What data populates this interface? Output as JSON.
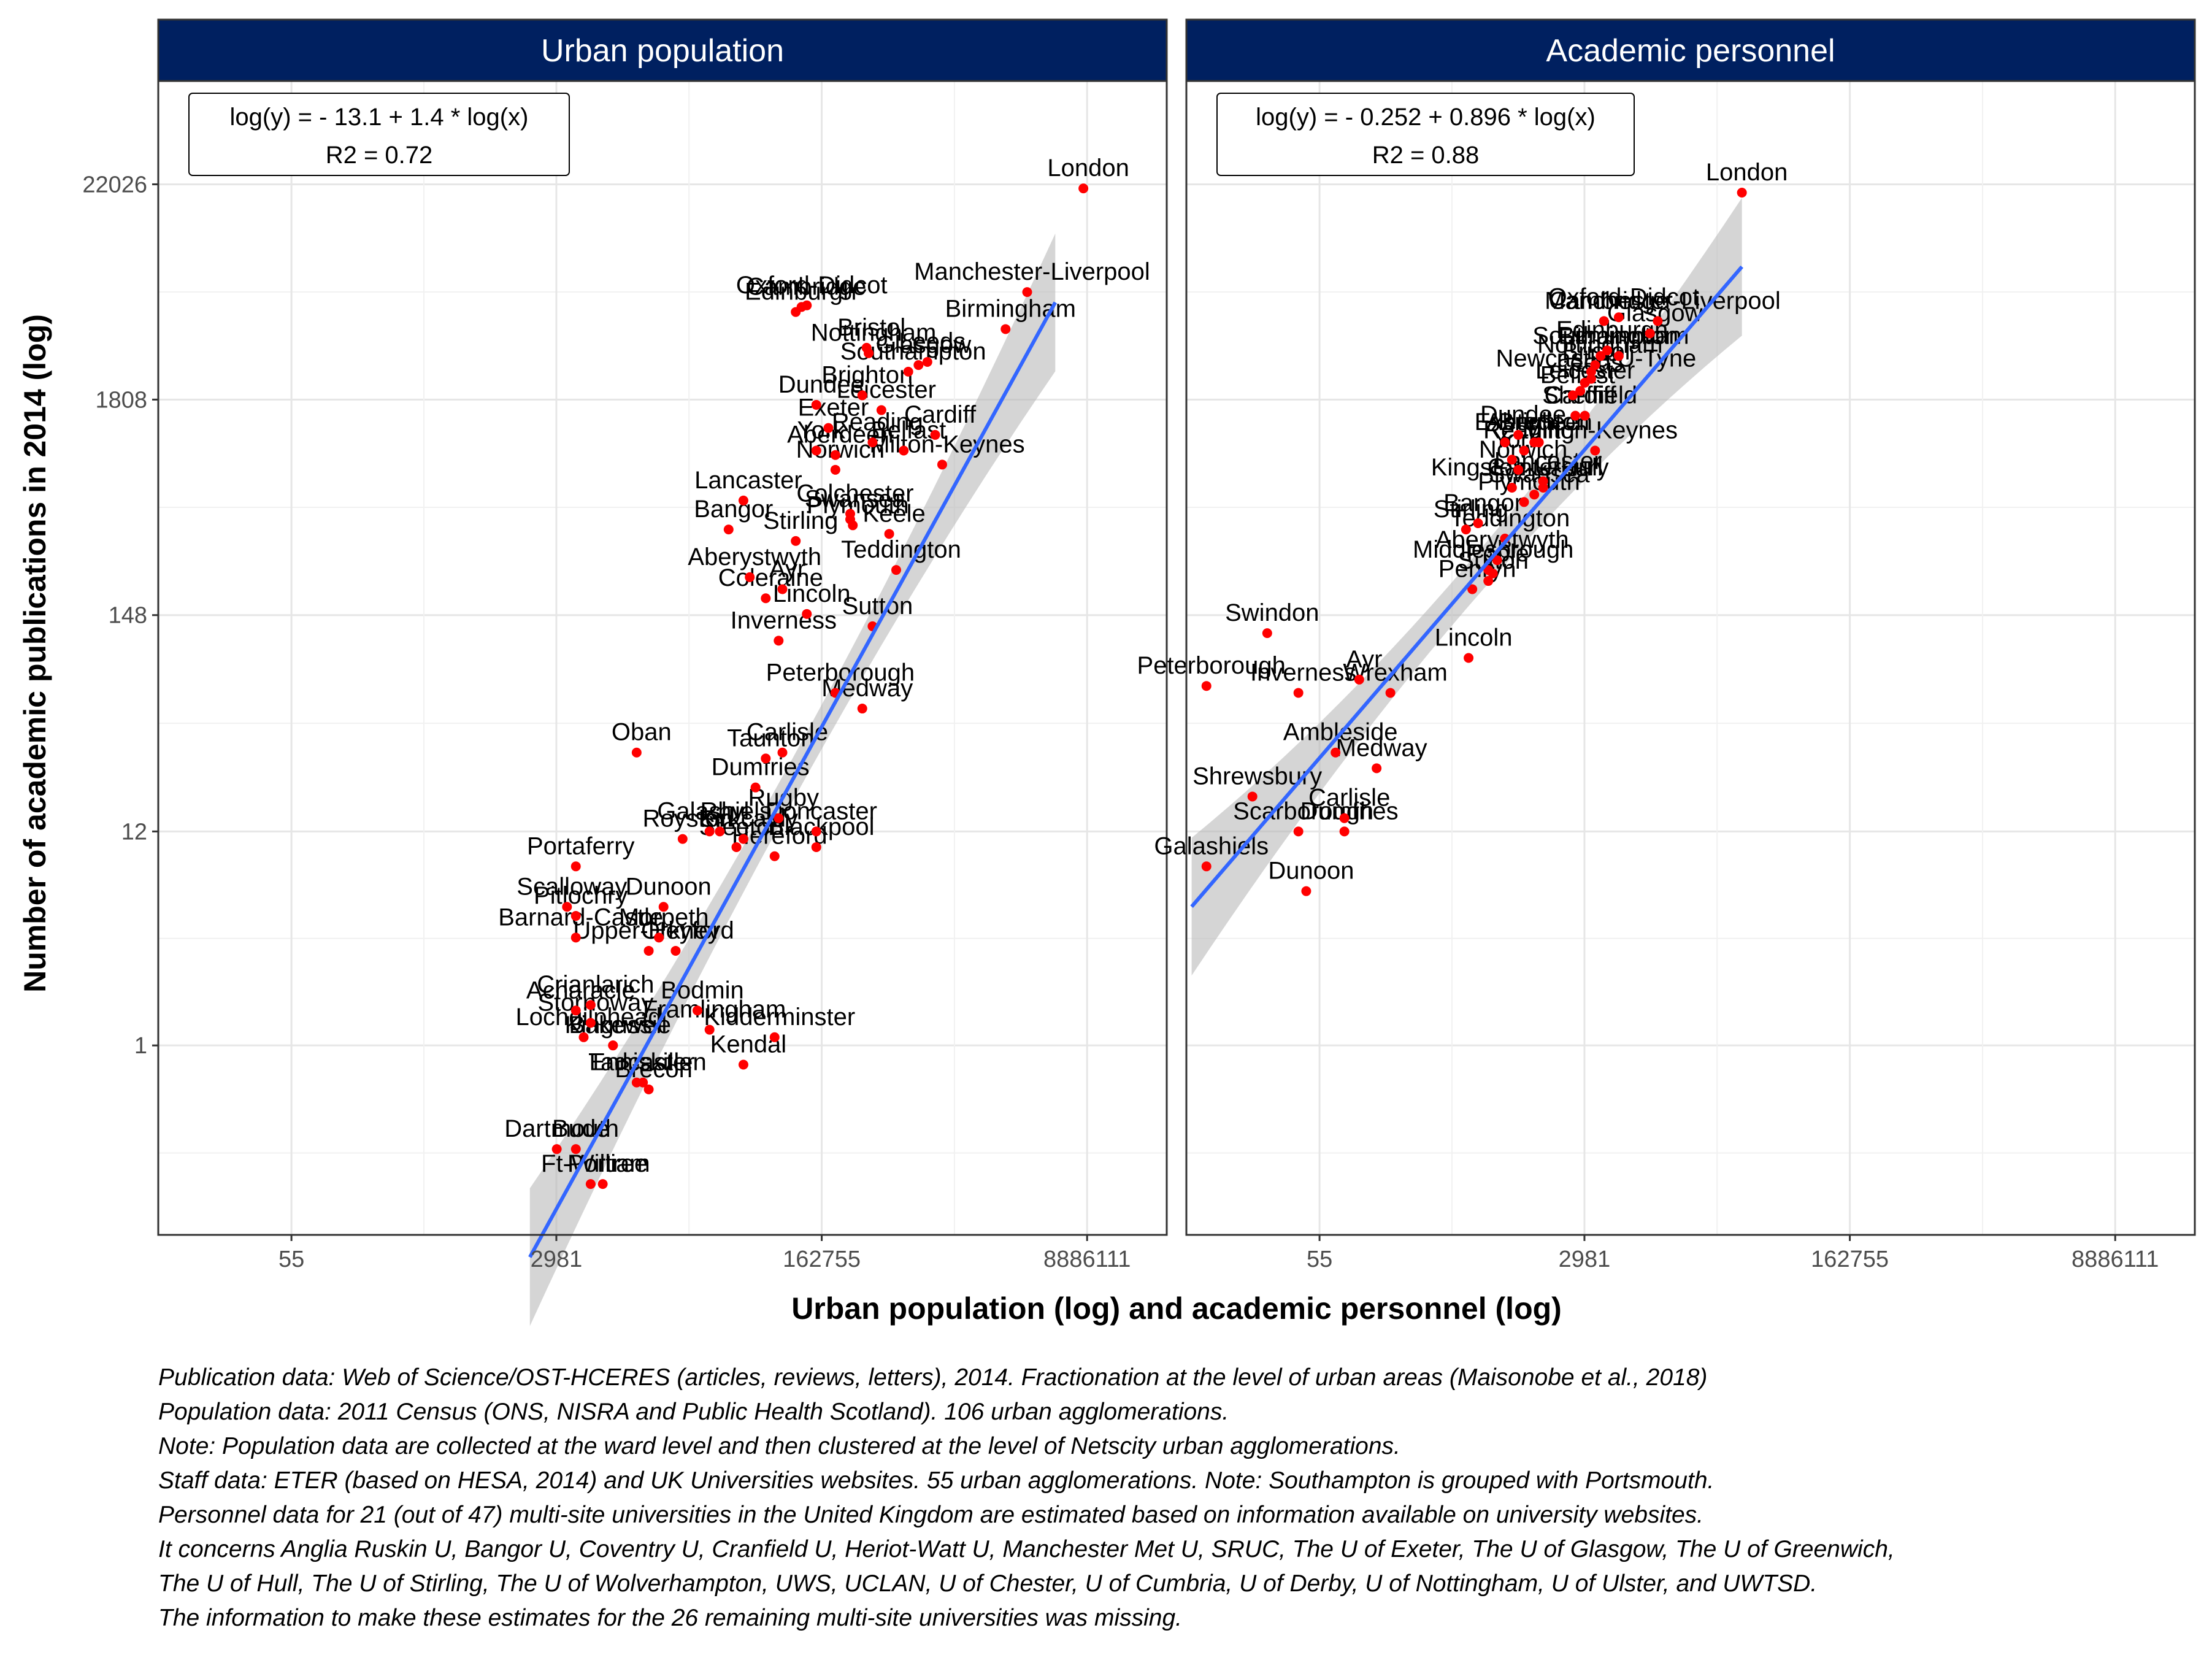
{
  "chart_data": {
    "type": "scatter",
    "ylabel": "Number of academic publications in 2014 (log)",
    "xlabel": "Urban population (log) and academic personnel (log)",
    "y_scale": "log",
    "x_scale": "log",
    "y_ticks": [
      "1",
      "12",
      "148",
      "1808",
      "22026"
    ],
    "x_ticks": [
      "55",
      "2981",
      "162755",
      "8886111"
    ],
    "grid": true,
    "point_color": "#ff0000",
    "fit_color": "#3366ff",
    "header_color": "#002060",
    "panels": [
      {
        "title": "Urban population",
        "equation": "log(y) = - 13.1 + 1.4 * log(x)",
        "r2": "R2 = 0.72",
        "fit": {
          "intercept": -13.1,
          "slope": 1.4,
          "x_range": [
            2000,
            5500000
          ]
        },
        "points": [
          {
            "label": "London",
            "x": 8400000,
            "y": 21000
          },
          {
            "label": "Manchester-Liverpool",
            "x": 3600000,
            "y": 6300
          },
          {
            "label": "Birmingham",
            "x": 2600000,
            "y": 4100
          },
          {
            "label": "Oxford-Didcot",
            "x": 130000,
            "y": 5400
          },
          {
            "label": "Edinburgh",
            "x": 110000,
            "y": 5000
          },
          {
            "label": "Glasgow",
            "x": 700000,
            "y": 2700
          },
          {
            "label": "Bristol",
            "x": 320000,
            "y": 3300
          },
          {
            "label": "Cambridge",
            "x": 120000,
            "y": 5300
          },
          {
            "label": "Nottingham",
            "x": 330000,
            "y": 3100
          },
          {
            "label": "Leeds",
            "x": 800000,
            "y": 2800
          },
          {
            "label": "Southampton",
            "x": 600000,
            "y": 2500
          },
          {
            "label": "Cardiff",
            "x": 900000,
            "y": 1200
          },
          {
            "label": "Dundee",
            "x": 150000,
            "y": 1700
          },
          {
            "label": "Leicester",
            "x": 400000,
            "y": 1600
          },
          {
            "label": "Brighton",
            "x": 300000,
            "y": 1900
          },
          {
            "label": "Reading",
            "x": 350000,
            "y": 1100
          },
          {
            "label": "Belfast",
            "x": 560000,
            "y": 1000
          },
          {
            "label": "Exeter",
            "x": 180000,
            "y": 1300
          },
          {
            "label": "Aberdeen",
            "x": 200000,
            "y": 950
          },
          {
            "label": "York",
            "x": 150000,
            "y": 1000
          },
          {
            "label": "Norwich",
            "x": 200000,
            "y": 800
          },
          {
            "label": "Milton-Keynes",
            "x": 1000000,
            "y": 850
          },
          {
            "label": "Lancaster",
            "x": 50000,
            "y": 560
          },
          {
            "label": "Colchester",
            "x": 250000,
            "y": 480
          },
          {
            "label": "Swansea",
            "x": 250000,
            "y": 450
          },
          {
            "label": "Plymouth",
            "x": 260000,
            "y": 420
          },
          {
            "label": "Stirling",
            "x": 110000,
            "y": 350
          },
          {
            "label": "Keele",
            "x": 450000,
            "y": 380
          },
          {
            "label": "Bangor",
            "x": 40000,
            "y": 400
          },
          {
            "label": "Aberystwyth",
            "x": 55000,
            "y": 230
          },
          {
            "label": "Teddington",
            "x": 500000,
            "y": 250
          },
          {
            "label": "Coleraine",
            "x": 70000,
            "y": 180
          },
          {
            "label": "Lincoln",
            "x": 130000,
            "y": 150
          },
          {
            "label": "Sutton",
            "x": 350000,
            "y": 130
          },
          {
            "label": "Inverness",
            "x": 85000,
            "y": 110
          },
          {
            "label": "Ayr",
            "x": 90000,
            "y": 200
          },
          {
            "label": "Peterborough",
            "x": 200000,
            "y": 60
          },
          {
            "label": "Medway",
            "x": 300000,
            "y": 50
          },
          {
            "label": "Oban",
            "x": 10000,
            "y": 30
          },
          {
            "label": "Carlisle",
            "x": 90000,
            "y": 30
          },
          {
            "label": "Taunton",
            "x": 70000,
            "y": 28
          },
          {
            "label": "Dumfries",
            "x": 60000,
            "y": 20
          },
          {
            "label": "Royston",
            "x": 20000,
            "y": 11
          },
          {
            "label": "Galashiels",
            "x": 30000,
            "y": 12
          },
          {
            "label": "Rugby",
            "x": 85000,
            "y": 14
          },
          {
            "label": "Rhyl",
            "x": 35000,
            "y": 12
          },
          {
            "label": "Kirkcaldy",
            "x": 50000,
            "y": 11
          },
          {
            "label": "Doncaster",
            "x": 150000,
            "y": 12
          },
          {
            "label": "Portaferry",
            "x": 4000,
            "y": 8
          },
          {
            "label": "Blackpool",
            "x": 150000,
            "y": 10
          },
          {
            "label": "Steeton",
            "x": 45000,
            "y": 10
          },
          {
            "label": "Hereford",
            "x": 80000,
            "y": 9
          },
          {
            "label": "Scalloway",
            "x": 3500,
            "y": 5
          },
          {
            "label": "Pitlochry",
            "x": 4000,
            "y": 4.5
          },
          {
            "label": "Dunoon",
            "x": 15000,
            "y": 5
          },
          {
            "label": "Barnard-Castle",
            "x": 4000,
            "y": 3.5
          },
          {
            "label": "Upper-Heyford",
            "x": 12000,
            "y": 3
          },
          {
            "label": "Orkney",
            "x": 18000,
            "y": 3
          },
          {
            "label": "Morpeth",
            "x": 14000,
            "y": 3.5
          },
          {
            "label": "Crianlarich",
            "x": 5000,
            "y": 1.6
          },
          {
            "label": "Acharacle",
            "x": 4000,
            "y": 1.5
          },
          {
            "label": "Bodmin",
            "x": 25000,
            "y": 1.5
          },
          {
            "label": "Framlingham",
            "x": 30000,
            "y": 1.2
          },
          {
            "label": "Stornoway",
            "x": 5000,
            "y": 1.3
          },
          {
            "label": "Kidderminster",
            "x": 80000,
            "y": 1.1
          },
          {
            "label": "Lochgilphead",
            "x": 4500,
            "y": 1.1
          },
          {
            "label": "Bakewell",
            "x": 7000,
            "y": 1
          },
          {
            "label": "Kingussie",
            "x": 7000,
            "y": 1
          },
          {
            "label": "Enniskillen",
            "x": 11000,
            "y": 0.65
          },
          {
            "label": "Kendal",
            "x": 50000,
            "y": 0.8
          },
          {
            "label": "Tadcaster",
            "x": 10000,
            "y": 0.65
          },
          {
            "label": "Brecon",
            "x": 12000,
            "y": 0.6
          },
          {
            "label": "Bude",
            "x": 4000,
            "y": 0.3
          },
          {
            "label": "Dartmouth",
            "x": 3000,
            "y": 0.3
          },
          {
            "label": "Ft-William",
            "x": 5000,
            "y": 0.2
          },
          {
            "label": "Portree",
            "x": 6000,
            "y": 0.2
          }
        ]
      },
      {
        "title": "Academic personnel",
        "equation": "log(y) = - 0.252 + 0.896 * log(x)",
        "r2": "R2 = 0.88",
        "fit": {
          "intercept": -0.252,
          "slope": 0.896,
          "x_range": [
            8,
            32000
          ]
        },
        "points": [
          {
            "label": "London",
            "x": 32000,
            "y": 20000
          },
          {
            "label": "Manchester-Liverpool",
            "x": 9000,
            "y": 4500
          },
          {
            "label": "Cambridge",
            "x": 4000,
            "y": 4500
          },
          {
            "label": "Oxford-Didcot",
            "x": 5000,
            "y": 4700
          },
          {
            "label": "Glasgow",
            "x": 8000,
            "y": 3900
          },
          {
            "label": "Southampton",
            "x": 3800,
            "y": 3000
          },
          {
            "label": "Edinburgh",
            "x": 4200,
            "y": 3200
          },
          {
            "label": "Birmingham",
            "x": 5000,
            "y": 3000
          },
          {
            "label": "Nottingham",
            "x": 3500,
            "y": 2700
          },
          {
            "label": "Bristol",
            "x": 3300,
            "y": 2500
          },
          {
            "label": "Newcastle-U-Tyne",
            "x": 3300,
            "y": 2300
          },
          {
            "label": "Leicester",
            "x": 2800,
            "y": 2000
          },
          {
            "label": "Leeds",
            "x": 3000,
            "y": 2200
          },
          {
            "label": "Belfast",
            "x": 2500,
            "y": 1900
          },
          {
            "label": "Sheffield",
            "x": 3000,
            "y": 1500
          },
          {
            "label": "Cardiff",
            "x": 2600,
            "y": 1500
          },
          {
            "label": "Exeter",
            "x": 900,
            "y": 1100
          },
          {
            "label": "Reading",
            "x": 1200,
            "y": 1000
          },
          {
            "label": "Dundee",
            "x": 1100,
            "y": 1200
          },
          {
            "label": "Milton-Keynes",
            "x": 3500,
            "y": 1000
          },
          {
            "label": "York",
            "x": 1000,
            "y": 900
          },
          {
            "label": "Norwich",
            "x": 1100,
            "y": 800
          },
          {
            "label": "Aberdeen",
            "x": 1400,
            "y": 1100
          },
          {
            "label": "Brighton",
            "x": 1500,
            "y": 1100
          },
          {
            "label": "Kingston-U-Hull",
            "x": 1000,
            "y": 650
          },
          {
            "label": "Plymouth",
            "x": 1200,
            "y": 550
          },
          {
            "label": "Swansea",
            "x": 1400,
            "y": 600
          },
          {
            "label": "Canterbury",
            "x": 1600,
            "y": 650
          },
          {
            "label": "Lancaster",
            "x": 1600,
            "y": 700
          },
          {
            "label": "Stirling",
            "x": 500,
            "y": 400
          },
          {
            "label": "Bangor",
            "x": 600,
            "y": 430
          },
          {
            "label": "Teddington",
            "x": 900,
            "y": 360
          },
          {
            "label": "Middlesbrough",
            "x": 700,
            "y": 250
          },
          {
            "label": "Aberystwyth",
            "x": 800,
            "y": 280
          },
          {
            "label": "Swindon",
            "x": 25,
            "y": 120
          },
          {
            "label": "Penryn",
            "x": 550,
            "y": 200
          },
          {
            "label": "Sutton",
            "x": 700,
            "y": 220
          },
          {
            "label": "Poole",
            "x": 750,
            "y": 240
          },
          {
            "label": "Peterborough",
            "x": 10,
            "y": 65
          },
          {
            "label": "Lincoln",
            "x": 520,
            "y": 90
          },
          {
            "label": "Inverness",
            "x": 40,
            "y": 60
          },
          {
            "label": "Ayr",
            "x": 100,
            "y": 70
          },
          {
            "label": "Wrexham",
            "x": 160,
            "y": 60
          },
          {
            "label": "Ambleside",
            "x": 70,
            "y": 30
          },
          {
            "label": "Medway",
            "x": 130,
            "y": 25
          },
          {
            "label": "Shrewsbury",
            "x": 20,
            "y": 18
          },
          {
            "label": "Carlisle",
            "x": 80,
            "y": 14
          },
          {
            "label": "Scarborough",
            "x": 40,
            "y": 12
          },
          {
            "label": "Dumfries",
            "x": 80,
            "y": 12
          },
          {
            "label": "Galashiels",
            "x": 10,
            "y": 8
          },
          {
            "label": "Dunoon",
            "x": 45,
            "y": 6
          }
        ]
      }
    ]
  },
  "caption": [
    "Publication data: Web of Science/OST-HCERES (articles, reviews, letters), 2014. Fractionation at the level of urban areas (Maisonobe et al., 2018)",
    "Population data: 2011 Census (ONS, NISRA and Public Health Scotland). 106 urban agglomerations.",
    "Note: Population data are collected at the ward level and then clustered at the level of Netscity urban agglomerations.",
    "Staff data: ETER (based on HESA, 2014) and UK Universities websites. 55 urban agglomerations. Note: Southampton is grouped with Portsmouth.",
    "Personnel data for 21 (out of 47) multi-site universities in the United Kingdom are estimated based on information available on university websites.",
    "It concerns Anglia Ruskin U, Bangor U, Coventry U, Cranfield U, Heriot-Watt U, Manchester Met U, SRUC, The U of Exeter, The U of Glasgow, The U of Greenwich,",
    "The U of Hull, The U of Stirling, The U of Wolverhampton, UWS, UCLAN, U of Chester, U of Cumbria, U of Derby, U of Nottingham, U of Ulster, and UWTSD.",
    "The information to make these estimates for the 26 remaining multi-site universities was missing."
  ]
}
